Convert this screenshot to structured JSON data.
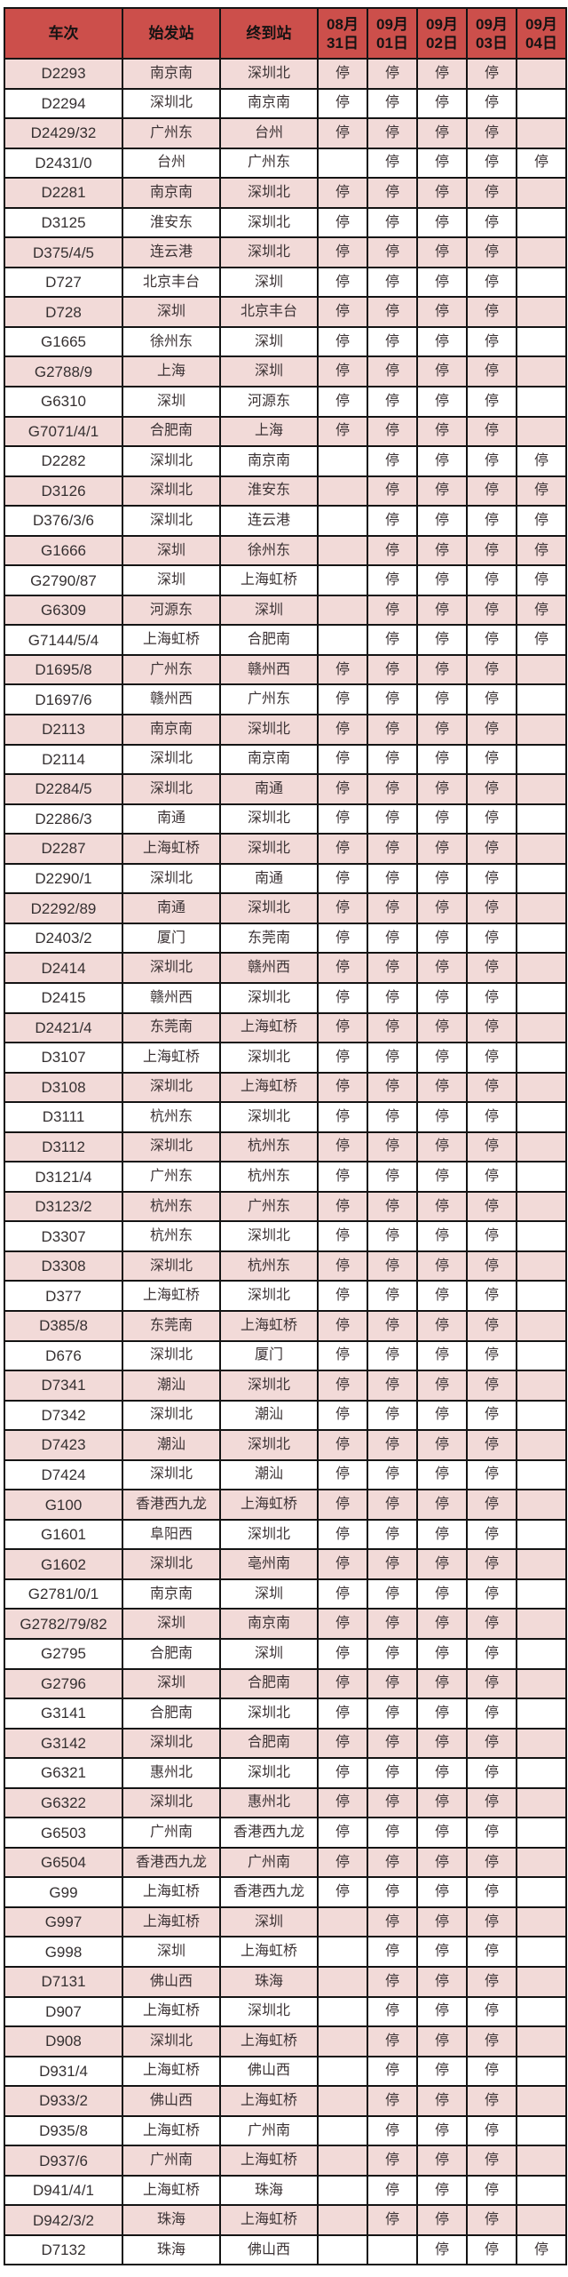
{
  "colors": {
    "header_bg": "#cc4f4b",
    "row_pink": "#f2dad8",
    "row_white": "#ffffff",
    "border": "#141414",
    "body_text": "#3c3335"
  },
  "table": {
    "columns": [
      "车次",
      "始发站",
      "终到站",
      "08月\n31日",
      "09月\n01日",
      "09月\n02日",
      "09月\n03日",
      "09月\n04日"
    ],
    "stop_label": "停",
    "rows": [
      {
        "train": "D2293",
        "from": "南京南",
        "to": "深圳北",
        "days": [
          "停",
          "停",
          "停",
          "停",
          ""
        ]
      },
      {
        "train": "D2294",
        "from": "深圳北",
        "to": "南京南",
        "days": [
          "停",
          "停",
          "停",
          "停",
          ""
        ]
      },
      {
        "train": "D2429/32",
        "from": "广州东",
        "to": "台州",
        "days": [
          "停",
          "停",
          "停",
          "停",
          ""
        ]
      },
      {
        "train": "D2431/0",
        "from": "台州",
        "to": "广州东",
        "days": [
          "",
          "停",
          "停",
          "停",
          "停"
        ]
      },
      {
        "train": "D2281",
        "from": "南京南",
        "to": "深圳北",
        "days": [
          "停",
          "停",
          "停",
          "停",
          ""
        ]
      },
      {
        "train": "D3125",
        "from": "淮安东",
        "to": "深圳北",
        "days": [
          "停",
          "停",
          "停",
          "停",
          ""
        ]
      },
      {
        "train": "D375/4/5",
        "from": "连云港",
        "to": "深圳北",
        "days": [
          "停",
          "停",
          "停",
          "停",
          ""
        ]
      },
      {
        "train": "D727",
        "from": "北京丰台",
        "to": "深圳",
        "days": [
          "停",
          "停",
          "停",
          "停",
          ""
        ]
      },
      {
        "train": "D728",
        "from": "深圳",
        "to": "北京丰台",
        "days": [
          "停",
          "停",
          "停",
          "停",
          ""
        ]
      },
      {
        "train": "G1665",
        "from": "徐州东",
        "to": "深圳",
        "days": [
          "停",
          "停",
          "停",
          "停",
          ""
        ]
      },
      {
        "train": "G2788/9",
        "from": "上海",
        "to": "深圳",
        "days": [
          "停",
          "停",
          "停",
          "停",
          ""
        ]
      },
      {
        "train": "G6310",
        "from": "深圳",
        "to": "河源东",
        "days": [
          "停",
          "停",
          "停",
          "停",
          ""
        ]
      },
      {
        "train": "G7071/4/1",
        "from": "合肥南",
        "to": "上海",
        "days": [
          "停",
          "停",
          "停",
          "停",
          ""
        ]
      },
      {
        "train": "D2282",
        "from": "深圳北",
        "to": "南京南",
        "days": [
          "",
          "停",
          "停",
          "停",
          "停"
        ]
      },
      {
        "train": "D3126",
        "from": "深圳北",
        "to": "淮安东",
        "days": [
          "",
          "停",
          "停",
          "停",
          "停"
        ]
      },
      {
        "train": "D376/3/6",
        "from": "深圳北",
        "to": "连云港",
        "days": [
          "",
          "停",
          "停",
          "停",
          "停"
        ]
      },
      {
        "train": "G1666",
        "from": "深圳",
        "to": "徐州东",
        "days": [
          "",
          "停",
          "停",
          "停",
          "停"
        ]
      },
      {
        "train": "G2790/87",
        "from": "深圳",
        "to": "上海虹桥",
        "days": [
          "",
          "停",
          "停",
          "停",
          "停"
        ]
      },
      {
        "train": "G6309",
        "from": "河源东",
        "to": "深圳",
        "days": [
          "",
          "停",
          "停",
          "停",
          "停"
        ]
      },
      {
        "train": "G7144/5/4",
        "from": "上海虹桥",
        "to": "合肥南",
        "days": [
          "",
          "停",
          "停",
          "停",
          "停"
        ]
      },
      {
        "train": "D1695/8",
        "from": "广州东",
        "to": "赣州西",
        "days": [
          "停",
          "停",
          "停",
          "停",
          ""
        ]
      },
      {
        "train": "D1697/6",
        "from": "赣州西",
        "to": "广州东",
        "days": [
          "停",
          "停",
          "停",
          "停",
          ""
        ]
      },
      {
        "train": "D2113",
        "from": "南京南",
        "to": "深圳北",
        "days": [
          "停",
          "停",
          "停",
          "停",
          ""
        ]
      },
      {
        "train": "D2114",
        "from": "深圳北",
        "to": "南京南",
        "days": [
          "停",
          "停",
          "停",
          "停",
          ""
        ]
      },
      {
        "train": "D2284/5",
        "from": "深圳北",
        "to": "南通",
        "days": [
          "停",
          "停",
          "停",
          "停",
          ""
        ]
      },
      {
        "train": "D2286/3",
        "from": "南通",
        "to": "深圳北",
        "days": [
          "停",
          "停",
          "停",
          "停",
          ""
        ]
      },
      {
        "train": "D2287",
        "from": "上海虹桥",
        "to": "深圳北",
        "days": [
          "停",
          "停",
          "停",
          "停",
          ""
        ]
      },
      {
        "train": "D2290/1",
        "from": "深圳北",
        "to": "南通",
        "days": [
          "停",
          "停",
          "停",
          "停",
          ""
        ]
      },
      {
        "train": "D2292/89",
        "from": "南通",
        "to": "深圳北",
        "days": [
          "停",
          "停",
          "停",
          "停",
          ""
        ]
      },
      {
        "train": "D2403/2",
        "from": "厦门",
        "to": "东莞南",
        "days": [
          "停",
          "停",
          "停",
          "停",
          ""
        ]
      },
      {
        "train": "D2414",
        "from": "深圳北",
        "to": "赣州西",
        "days": [
          "停",
          "停",
          "停",
          "停",
          ""
        ]
      },
      {
        "train": "D2415",
        "from": "赣州西",
        "to": "深圳北",
        "days": [
          "停",
          "停",
          "停",
          "停",
          ""
        ]
      },
      {
        "train": "D2421/4",
        "from": "东莞南",
        "to": "上海虹桥",
        "days": [
          "停",
          "停",
          "停",
          "停",
          ""
        ]
      },
      {
        "train": "D3107",
        "from": "上海虹桥",
        "to": "深圳北",
        "days": [
          "停",
          "停",
          "停",
          "停",
          ""
        ]
      },
      {
        "train": "D3108",
        "from": "深圳北",
        "to": "上海虹桥",
        "days": [
          "停",
          "停",
          "停",
          "停",
          ""
        ]
      },
      {
        "train": "D3111",
        "from": "杭州东",
        "to": "深圳北",
        "days": [
          "停",
          "停",
          "停",
          "停",
          ""
        ]
      },
      {
        "train": "D3112",
        "from": "深圳北",
        "to": "杭州东",
        "days": [
          "停",
          "停",
          "停",
          "停",
          ""
        ]
      },
      {
        "train": "D3121/4",
        "from": "广州东",
        "to": "杭州东",
        "days": [
          "停",
          "停",
          "停",
          "停",
          ""
        ]
      },
      {
        "train": "D3123/2",
        "from": "杭州东",
        "to": "广州东",
        "days": [
          "停",
          "停",
          "停",
          "停",
          ""
        ]
      },
      {
        "train": "D3307",
        "from": "杭州东",
        "to": "深圳北",
        "days": [
          "停",
          "停",
          "停",
          "停",
          ""
        ]
      },
      {
        "train": "D3308",
        "from": "深圳北",
        "to": "杭州东",
        "days": [
          "停",
          "停",
          "停",
          "停",
          ""
        ]
      },
      {
        "train": "D377",
        "from": "上海虹桥",
        "to": "深圳北",
        "days": [
          "停",
          "停",
          "停",
          "停",
          ""
        ]
      },
      {
        "train": "D385/8",
        "from": "东莞南",
        "to": "上海虹桥",
        "days": [
          "停",
          "停",
          "停",
          "停",
          ""
        ]
      },
      {
        "train": "D676",
        "from": "深圳北",
        "to": "厦门",
        "days": [
          "停",
          "停",
          "停",
          "停",
          ""
        ]
      },
      {
        "train": "D7341",
        "from": "潮汕",
        "to": "深圳北",
        "days": [
          "停",
          "停",
          "停",
          "停",
          ""
        ]
      },
      {
        "train": "D7342",
        "from": "深圳北",
        "to": "潮汕",
        "days": [
          "停",
          "停",
          "停",
          "停",
          ""
        ]
      },
      {
        "train": "D7423",
        "from": "潮汕",
        "to": "深圳北",
        "days": [
          "停",
          "停",
          "停",
          "停",
          ""
        ]
      },
      {
        "train": "D7424",
        "from": "深圳北",
        "to": "潮汕",
        "days": [
          "停",
          "停",
          "停",
          "停",
          ""
        ]
      },
      {
        "train": "G100",
        "from": "香港西九龙",
        "to": "上海虹桥",
        "days": [
          "停",
          "停",
          "停",
          "停",
          ""
        ]
      },
      {
        "train": "G1601",
        "from": "阜阳西",
        "to": "深圳北",
        "days": [
          "停",
          "停",
          "停",
          "停",
          ""
        ]
      },
      {
        "train": "G1602",
        "from": "深圳北",
        "to": "亳州南",
        "days": [
          "停",
          "停",
          "停",
          "停",
          ""
        ]
      },
      {
        "train": "G2781/0/1",
        "from": "南京南",
        "to": "深圳",
        "days": [
          "停",
          "停",
          "停",
          "停",
          ""
        ]
      },
      {
        "train": "G2782/79/82",
        "from": "深圳",
        "to": "南京南",
        "days": [
          "停",
          "停",
          "停",
          "停",
          ""
        ]
      },
      {
        "train": "G2795",
        "from": "合肥南",
        "to": "深圳",
        "days": [
          "停",
          "停",
          "停",
          "停",
          ""
        ]
      },
      {
        "train": "G2796",
        "from": "深圳",
        "to": "合肥南",
        "days": [
          "停",
          "停",
          "停",
          "停",
          ""
        ]
      },
      {
        "train": "G3141",
        "from": "合肥南",
        "to": "深圳北",
        "days": [
          "停",
          "停",
          "停",
          "停",
          ""
        ]
      },
      {
        "train": "G3142",
        "from": "深圳北",
        "to": "合肥南",
        "days": [
          "停",
          "停",
          "停",
          "停",
          ""
        ]
      },
      {
        "train": "G6321",
        "from": "惠州北",
        "to": "深圳北",
        "days": [
          "停",
          "停",
          "停",
          "停",
          ""
        ]
      },
      {
        "train": "G6322",
        "from": "深圳北",
        "to": "惠州北",
        "days": [
          "停",
          "停",
          "停",
          "停",
          ""
        ]
      },
      {
        "train": "G6503",
        "from": "广州南",
        "to": "香港西九龙",
        "days": [
          "停",
          "停",
          "停",
          "停",
          ""
        ]
      },
      {
        "train": "G6504",
        "from": "香港西九龙",
        "to": "广州南",
        "days": [
          "停",
          "停",
          "停",
          "停",
          ""
        ]
      },
      {
        "train": "G99",
        "from": "上海虹桥",
        "to": "香港西九龙",
        "days": [
          "停",
          "停",
          "停",
          "停",
          ""
        ]
      },
      {
        "train": "G997",
        "from": "上海虹桥",
        "to": "深圳",
        "days": [
          "",
          "停",
          "停",
          "停",
          ""
        ]
      },
      {
        "train": "G998",
        "from": "深圳",
        "to": "上海虹桥",
        "days": [
          "",
          "停",
          "停",
          "停",
          ""
        ]
      },
      {
        "train": "D7131",
        "from": "佛山西",
        "to": "珠海",
        "days": [
          "",
          "停",
          "停",
          "停",
          ""
        ]
      },
      {
        "train": "D907",
        "from": "上海虹桥",
        "to": "深圳北",
        "days": [
          "",
          "停",
          "停",
          "停",
          ""
        ]
      },
      {
        "train": "D908",
        "from": "深圳北",
        "to": "上海虹桥",
        "days": [
          "",
          "停",
          "停",
          "停",
          ""
        ]
      },
      {
        "train": "D931/4",
        "from": "上海虹桥",
        "to": "佛山西",
        "days": [
          "",
          "停",
          "停",
          "停",
          ""
        ]
      },
      {
        "train": "D933/2",
        "from": "佛山西",
        "to": "上海虹桥",
        "days": [
          "",
          "停",
          "停",
          "停",
          ""
        ]
      },
      {
        "train": "D935/8",
        "from": "上海虹桥",
        "to": "广州南",
        "days": [
          "",
          "停",
          "停",
          "停",
          ""
        ]
      },
      {
        "train": "D937/6",
        "from": "广州南",
        "to": "上海虹桥",
        "days": [
          "",
          "停",
          "停",
          "停",
          ""
        ]
      },
      {
        "train": "D941/4/1",
        "from": "上海虹桥",
        "to": "珠海",
        "days": [
          "",
          "停",
          "停",
          "停",
          ""
        ]
      },
      {
        "train": "D942/3/2",
        "from": "珠海",
        "to": "上海虹桥",
        "days": [
          "",
          "停",
          "停",
          "停",
          ""
        ]
      },
      {
        "train": "D7132",
        "from": "珠海",
        "to": "佛山西",
        "days": [
          "",
          "",
          "停",
          "停",
          "停"
        ]
      }
    ]
  }
}
